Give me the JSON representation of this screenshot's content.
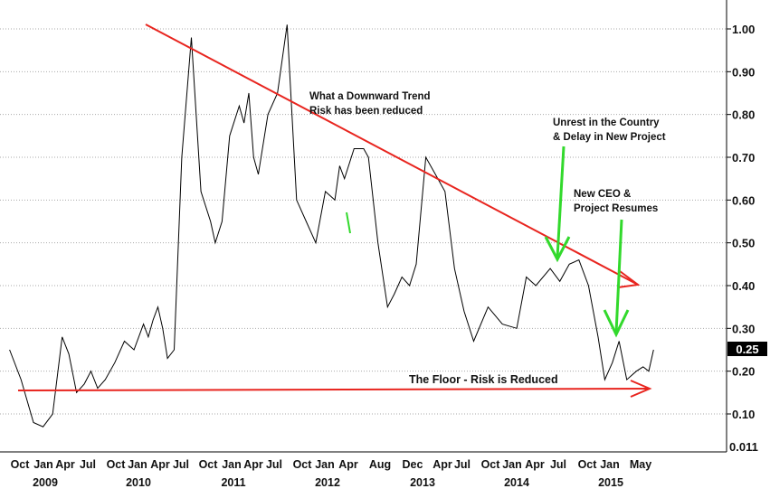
{
  "chart_data": {
    "type": "line",
    "title": "",
    "xlabel": "",
    "ylabel": "",
    "ylim": [
      0.011,
      1.05
    ],
    "y_ticks": [
      "1.00",
      "0.90",
      "0.80",
      "0.70",
      "0.60",
      "0.50",
      "0.40",
      "0.30",
      "0.20",
      "0.10",
      "0.011"
    ],
    "current_value_label": "0.25",
    "current_value": 0.25,
    "grid": true,
    "x_month_labels": [
      "Oct",
      "Jan",
      "Apr",
      "Jul",
      "Oct",
      "Jan",
      "Apr",
      "Jul",
      "Oct",
      "Jan",
      "Apr",
      "Jul",
      "Oct",
      "Jan",
      "Apr",
      "Aug",
      "Dec",
      "Apr",
      "Jul",
      "Oct",
      "Jan",
      "Apr",
      "Jul",
      "Oct",
      "Jan",
      "May"
    ],
    "x_year_labels": [
      "2009",
      "2010",
      "2011",
      "2012",
      "2013",
      "2014",
      "2015"
    ],
    "series": [
      {
        "color": "#000000",
        "x": [
          2008.6,
          2008.72,
          2008.85,
          2008.95,
          2009.05,
          2009.15,
          2009.22,
          2009.3,
          2009.38,
          2009.45,
          2009.52,
          2009.6,
          2009.7,
          2009.8,
          2009.9,
          2010.0,
          2010.05,
          2010.1,
          2010.15,
          2010.2,
          2010.25,
          2010.32,
          2010.4,
          2010.5,
          2010.6,
          2010.7,
          2010.75,
          2010.82,
          2010.9,
          2011.0,
          2011.05,
          2011.1,
          2011.15,
          2011.2,
          2011.3,
          2011.4,
          2011.5,
          2011.6,
          2011.7,
          2011.8,
          2011.9,
          2012.0,
          2012.05,
          2012.1,
          2012.2,
          2012.3,
          2012.35,
          2012.45,
          2012.55,
          2012.62,
          2012.7,
          2012.78,
          2012.85,
          2012.95,
          2013.05,
          2013.15,
          2013.25,
          2013.35,
          2013.45,
          2013.6,
          2013.75,
          2013.9,
          2014.0,
          2014.1,
          2014.25,
          2014.35,
          2014.45,
          2014.55,
          2014.65,
          2014.75,
          2014.82,
          2014.9,
          2014.97,
          2015.05,
          2015.15,
          2015.22,
          2015.28,
          2015.33
        ],
        "y": [
          0.25,
          0.18,
          0.08,
          0.07,
          0.1,
          0.28,
          0.24,
          0.15,
          0.17,
          0.2,
          0.16,
          0.18,
          0.22,
          0.27,
          0.25,
          0.31,
          0.28,
          0.32,
          0.35,
          0.3,
          0.23,
          0.25,
          0.7,
          0.98,
          0.62,
          0.55,
          0.5,
          0.55,
          0.75,
          0.82,
          0.78,
          0.85,
          0.7,
          0.66,
          0.8,
          0.85,
          1.01,
          0.6,
          0.55,
          0.5,
          0.62,
          0.6,
          0.68,
          0.65,
          0.72,
          0.72,
          0.7,
          0.5,
          0.35,
          0.38,
          0.42,
          0.4,
          0.45,
          0.7,
          0.66,
          0.62,
          0.44,
          0.34,
          0.27,
          0.35,
          0.31,
          0.3,
          0.42,
          0.4,
          0.44,
          0.41,
          0.45,
          0.46,
          0.4,
          0.28,
          0.18,
          0.22,
          0.27,
          0.18,
          0.2,
          0.21,
          0.2,
          0.25
        ]
      }
    ],
    "annotations": [
      {
        "text": "What a Downward Trend",
        "color": "#000000"
      },
      {
        "text": "Risk has been reduced",
        "color": "#000000"
      },
      {
        "text": "Unrest in the Country",
        "color": "#000000"
      },
      {
        "text": "& Delay in New Project",
        "color": "#000000"
      },
      {
        "text": "New CEO &",
        "color": "#000000"
      },
      {
        "text": "Project Resumes",
        "color": "#000000"
      },
      {
        "text": "The Floor - Risk is Reduced",
        "color": "#000000"
      }
    ],
    "trendline_color": "#e8251f",
    "arrow_color": "#32d92c"
  }
}
